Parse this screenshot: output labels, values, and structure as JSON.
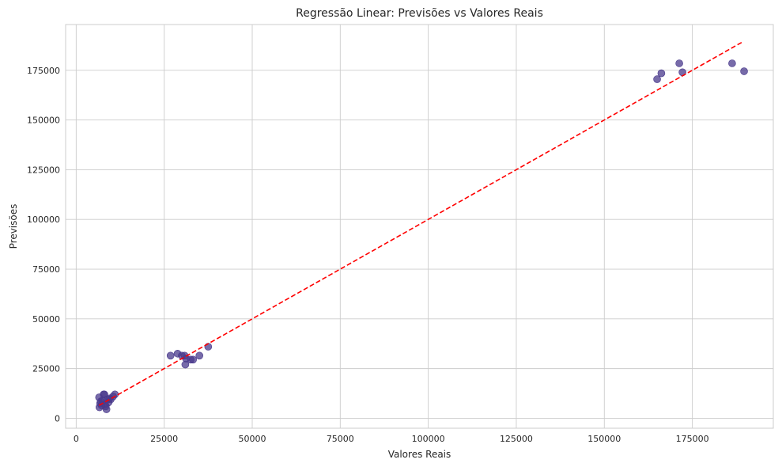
{
  "chart_data": {
    "type": "scatter",
    "title": "Regressão Linear: Previsões vs Valores Reais",
    "xlabel": "Valores Reais",
    "ylabel": "Previsões",
    "xlim": [
      -3000,
      198000
    ],
    "ylim": [
      -5000,
      198000
    ],
    "xticks": [
      0,
      25000,
      50000,
      75000,
      100000,
      125000,
      150000,
      175000
    ],
    "yticks": [
      0,
      25000,
      50000,
      75000,
      100000,
      125000,
      150000,
      175000
    ],
    "grid": true,
    "point_color": "#4a3a8c",
    "line_color": "#ff0000",
    "reference_line": {
      "style": "dashed",
      "from": [
        6500,
        6500
      ],
      "to": [
        189500,
        189500
      ]
    },
    "points": [
      [
        6500,
        10500
      ],
      [
        6600,
        5500
      ],
      [
        6800,
        7500
      ],
      [
        7000,
        8500
      ],
      [
        7200,
        6500
      ],
      [
        7500,
        9000
      ],
      [
        7800,
        12000
      ],
      [
        8000,
        12000
      ],
      [
        8200,
        7000
      ],
      [
        8400,
        6000
      ],
      [
        8600,
        4500
      ],
      [
        8800,
        9500
      ],
      [
        9200,
        8000
      ],
      [
        9500,
        10000
      ],
      [
        9800,
        9500
      ],
      [
        10500,
        11000
      ],
      [
        11000,
        12000
      ],
      [
        26800,
        31500
      ],
      [
        28800,
        32500
      ],
      [
        30000,
        31500
      ],
      [
        30800,
        31500
      ],
      [
        31000,
        27000
      ],
      [
        31200,
        30000
      ],
      [
        32500,
        29500
      ],
      [
        33200,
        29500
      ],
      [
        35000,
        31500
      ],
      [
        37500,
        36000
      ],
      [
        165000,
        170500
      ],
      [
        166200,
        173500
      ],
      [
        171300,
        178500
      ],
      [
        172200,
        174000
      ],
      [
        186300,
        178500
      ],
      [
        189700,
        174500
      ]
    ]
  }
}
